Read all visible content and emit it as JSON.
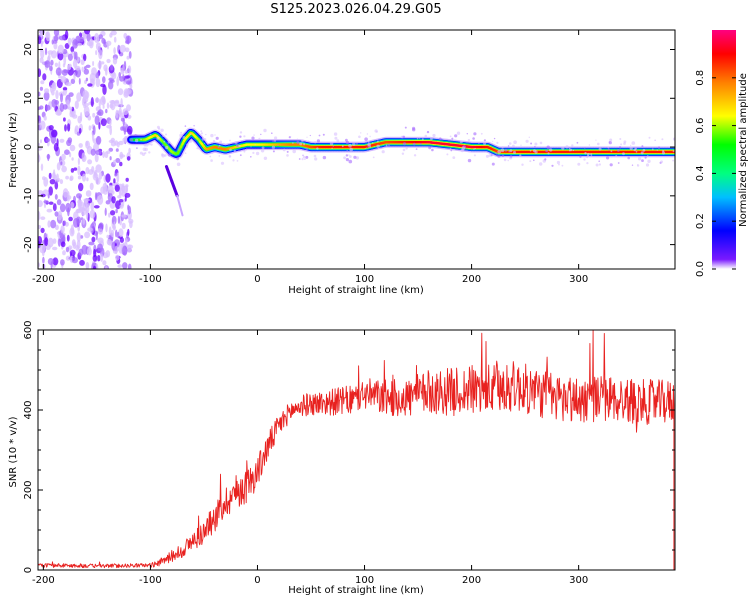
{
  "figure": {
    "title": "S125.2023.026.04.29.G05"
  },
  "chart_data": [
    {
      "type": "heatmap",
      "xlabel": "Height of straight line (km)",
      "ylabel": "Frequency (Hz)",
      "xlim": [
        -205,
        390
      ],
      "ylim": [
        -25,
        24
      ],
      "x_ticks": [
        -200,
        -100,
        0,
        100,
        200,
        300
      ],
      "y_ticks": [
        -20,
        -10,
        0,
        10,
        20
      ],
      "colorbar": {
        "label": "Normalized spectral amplitude",
        "range": [
          0,
          1
        ],
        "ticks": [
          0.0,
          0.2,
          0.4,
          0.6,
          0.8
        ],
        "colormap": [
          "#ffffff",
          "#6a00ff",
          "#0000ff",
          "#00ffff",
          "#00ff00",
          "#ffff00",
          "#ff8000",
          "#ff0000",
          "#ff0080"
        ]
      },
      "noise_region_x": [
        -205,
        -118
      ],
      "ridge": {
        "x": [
          -118,
          -105,
          -95,
          -88,
          -80,
          -75,
          -68,
          -62,
          -55,
          -48,
          -40,
          -30,
          -20,
          -10,
          0,
          10,
          20,
          30,
          40,
          50,
          60,
          80,
          100,
          120,
          140,
          160,
          180,
          200,
          215,
          225,
          240,
          300,
          390
        ],
        "y": [
          1.5,
          1.5,
          2.5,
          1.0,
          -1.0,
          -1.5,
          1.5,
          3.0,
          1.5,
          -0.5,
          0.0,
          -0.5,
          0.0,
          0.5,
          0.5,
          0.5,
          0.5,
          0.5,
          0.5,
          0.0,
          0.0,
          0.0,
          0.0,
          1.0,
          1.0,
          1.0,
          0.5,
          0.0,
          0.0,
          -1.0,
          -1.0,
          -1.0,
          -1.0
        ],
        "amplitude": [
          0.45,
          0.6,
          0.7,
          0.55,
          0.6,
          0.55,
          0.65,
          0.7,
          0.6,
          0.75,
          0.8,
          0.8,
          0.7,
          0.65,
          0.65,
          0.7,
          0.75,
          0.8,
          0.8,
          0.85,
          0.9,
          0.9,
          0.9,
          0.85,
          0.9,
          0.95,
          0.95,
          0.95,
          0.9,
          0.85,
          0.9,
          0.9,
          0.9
        ]
      },
      "side_branch": {
        "x": [
          -85,
          -80,
          -75,
          -70
        ],
        "y": [
          -4,
          -7,
          -10,
          -14
        ]
      }
    },
    {
      "type": "line",
      "xlabel": "Height of straight line (km)",
      "ylabel": "SNR (10 * v/v)",
      "xlim": [
        -205,
        390
      ],
      "ylim": [
        0,
        600
      ],
      "x_ticks": [
        -200,
        -100,
        0,
        100,
        200,
        300
      ],
      "y_ticks": [
        0,
        200,
        400,
        600
      ],
      "series": [
        {
          "color": "#e8211f",
          "trend": {
            "x": [
              -205,
              -150,
              -100,
              -90,
              -70,
              -50,
              -40,
              -30,
              -20,
              -10,
              0,
              10,
              20,
              30,
              40,
              50,
              70,
              90,
              100,
              120,
              140,
              160,
              180,
              200,
              220,
              240,
              260,
              280,
              300,
              320,
              340,
              360,
              390
            ],
            "y": [
              12,
              10,
              12,
              20,
              50,
              95,
              130,
              170,
              195,
              210,
              245,
              310,
              360,
              395,
              410,
              415,
              420,
              425,
              440,
              430,
              430,
              445,
              445,
              450,
              450,
              460,
              445,
              430,
              425,
              430,
              425,
              420,
              420
            ]
          },
          "noise_amplitude": {
            "x": [
              -205,
              -100,
              -60,
              -20,
              0,
              30,
              100,
              180,
              220,
              390
            ],
            "y": [
              5,
              5,
              25,
              45,
              40,
              25,
              40,
              60,
              65,
              55
            ]
          }
        }
      ]
    }
  ]
}
